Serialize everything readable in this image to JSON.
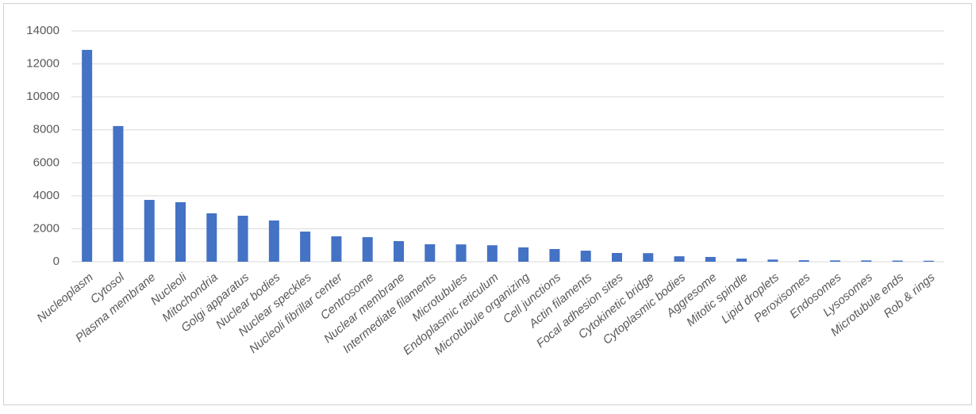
{
  "chart_data": {
    "type": "bar",
    "categories": [
      "Nucleoplasm",
      "Cytosol",
      "Plasma membrane",
      "Nucleoli",
      "Mitochondria",
      "Golgi apparatus",
      "Nuclear bodies",
      "Nuclear speckles",
      "Nucleoli fibrillar center",
      "Centrosome",
      "Nuclear membrane",
      "Intermediate filaments",
      "Microtubules",
      "Endoplasmic reticulum",
      "Microtubule organizing",
      "Cell junctions",
      "Actin filaments",
      "Focal adhesion sites",
      "Cytokinetic bridge",
      "Cytoplasmic bodies",
      "Aggresome",
      "Mitotic spindle",
      "Lipid droplets",
      "Peroxisomes",
      "Endosomes",
      "Lysosomes",
      "Microtubule ends",
      "Rob & rings"
    ],
    "values": [
      12850,
      8230,
      3750,
      3610,
      2935,
      2790,
      2500,
      1830,
      1540,
      1490,
      1250,
      1060,
      1050,
      1000,
      870,
      770,
      670,
      530,
      520,
      330,
      290,
      190,
      130,
      90,
      80,
      80,
      70,
      60
    ],
    "color": "#4472c4",
    "ylim": [
      0,
      14000
    ],
    "yticks": [
      0,
      2000,
      4000,
      6000,
      8000,
      10000,
      12000,
      14000
    ],
    "grid": true
  }
}
